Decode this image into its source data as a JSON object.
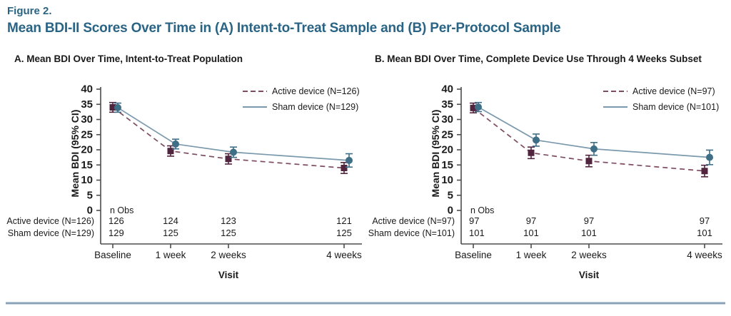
{
  "header": {
    "figure_label": "Figure 2.",
    "title": "Mean BDI-II Scores Over Time in (A) Intent-to-Treat Sample and (B) Per-Protocol Sample"
  },
  "colors": {
    "heading_teal": "#2a6484",
    "text": "#1a1a1a",
    "axis": "#4d4d4d",
    "active_marker": "#52253f",
    "active_line": "#7d4c62",
    "sham_marker": "#3f6e87",
    "sham_line": "#7b99ac",
    "bottom_rule": "#85a0b6"
  },
  "chart_data": [
    {
      "type": "line",
      "panel_title": "A. Mean BDI Over Time, Intent-to-Treat Population",
      "xlabel": "Visit",
      "ylabel": "Mean BDI (95% CI)",
      "ylim": [
        0,
        40
      ],
      "ytick_step": 5,
      "grid": false,
      "legend_position": "top-right",
      "x_weeks": [
        0,
        1,
        2,
        4
      ],
      "categories": [
        "Baseline",
        "1 week",
        "2 weeks",
        "4 weeks"
      ],
      "n_obs_header": "n Obs",
      "series": [
        {
          "name": "Active device (N=126)",
          "row_label": "Active device (N=126)",
          "role": "active",
          "line_style": "dashed",
          "marker": "square",
          "values": [
            34.0,
            19.6,
            17.0,
            14.0
          ],
          "ci_halfwidth": [
            1.6,
            1.7,
            1.7,
            1.8
          ],
          "n_obs": [
            126,
            124,
            123,
            121
          ]
        },
        {
          "name": "Sham device (N=129)",
          "row_label": "Sham device (N=129)",
          "role": "sham",
          "line_style": "solid",
          "marker": "circle",
          "values": [
            33.9,
            21.9,
            19.2,
            16.5
          ],
          "ci_halfwidth": [
            1.5,
            1.6,
            1.7,
            2.2
          ],
          "n_obs": [
            129,
            125,
            125,
            125
          ]
        }
      ]
    },
    {
      "type": "line",
      "panel_title": "B. Mean BDI Over Time, Complete Device Use Through 4 Weeks Subset",
      "xlabel": "Visit",
      "ylabel": "Mean BDI (95% CI)",
      "ylim": [
        0,
        40
      ],
      "ytick_step": 5,
      "grid": false,
      "legend_position": "top-right",
      "x_weeks": [
        0,
        1,
        2,
        4
      ],
      "categories": [
        "Baseline",
        "1 week",
        "2 weeks",
        "4 weeks"
      ],
      "n_obs_header": "n Obs",
      "series": [
        {
          "name": "Active device (N=97)",
          "row_label": "Active device (N=97)",
          "role": "active",
          "line_style": "dashed",
          "marker": "square",
          "values": [
            33.8,
            19.0,
            16.3,
            13.0
          ],
          "ci_halfwidth": [
            1.6,
            1.9,
            1.9,
            1.9
          ],
          "n_obs": [
            97,
            97,
            97,
            97
          ]
        },
        {
          "name": "Sham device (N=101)",
          "row_label": "Sham device (N=101)",
          "role": "sham",
          "line_style": "solid",
          "marker": "circle",
          "values": [
            34.1,
            23.2,
            20.3,
            17.5
          ],
          "ci_halfwidth": [
            1.5,
            2.0,
            2.1,
            2.4
          ],
          "n_obs": [
            101,
            101,
            101,
            101
          ]
        }
      ]
    }
  ]
}
